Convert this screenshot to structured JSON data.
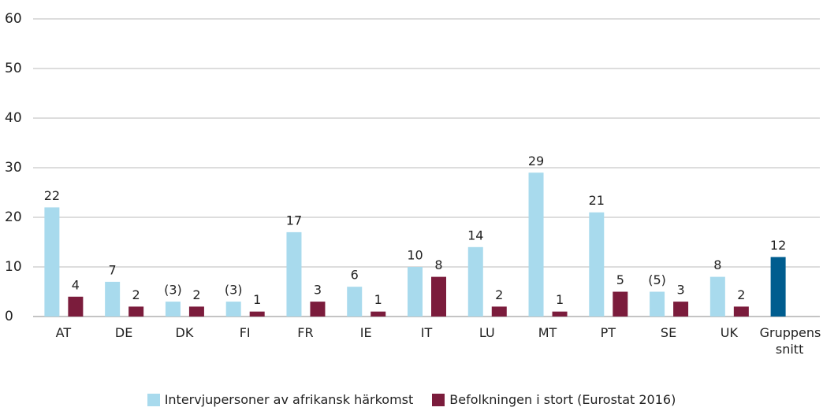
{
  "chart_data": {
    "type": "bar",
    "categories": [
      "AT",
      "DE",
      "DK",
      "FI",
      "FR",
      "IE",
      "IT",
      "LU",
      "MT",
      "PT",
      "SE",
      "UK",
      "Gruppens snitt"
    ],
    "series": [
      {
        "name": "Intervjupersoner av afrikansk härkomst",
        "color": "#a8daed",
        "colors": [
          "#a8daed",
          "#a8daed",
          "#a8daed",
          "#a8daed",
          "#a8daed",
          "#a8daed",
          "#a8daed",
          "#a8daed",
          "#a8daed",
          "#a8daed",
          "#a8daed",
          "#a8daed",
          "#005d8f"
        ],
        "values": [
          22,
          7,
          3,
          3,
          17,
          6,
          10,
          14,
          29,
          21,
          5,
          8,
          12
        ],
        "value_labels": [
          "22",
          "7",
          "(3)",
          "(3)",
          "17",
          "6",
          "10",
          "14",
          "29",
          "21",
          "(5)",
          "8",
          "12"
        ]
      },
      {
        "name": "Befolkningen i stort (Eurostat 2016)",
        "color": "#7b1c3c",
        "values": [
          4,
          2,
          2,
          1,
          3,
          1,
          8,
          2,
          1,
          5,
          3,
          2,
          null
        ]
      }
    ],
    "ylim": [
      0,
      60
    ],
    "yticks": [
      0,
      10,
      20,
      30,
      40,
      50,
      60
    ],
    "grid": true,
    "legend": "bottom"
  }
}
